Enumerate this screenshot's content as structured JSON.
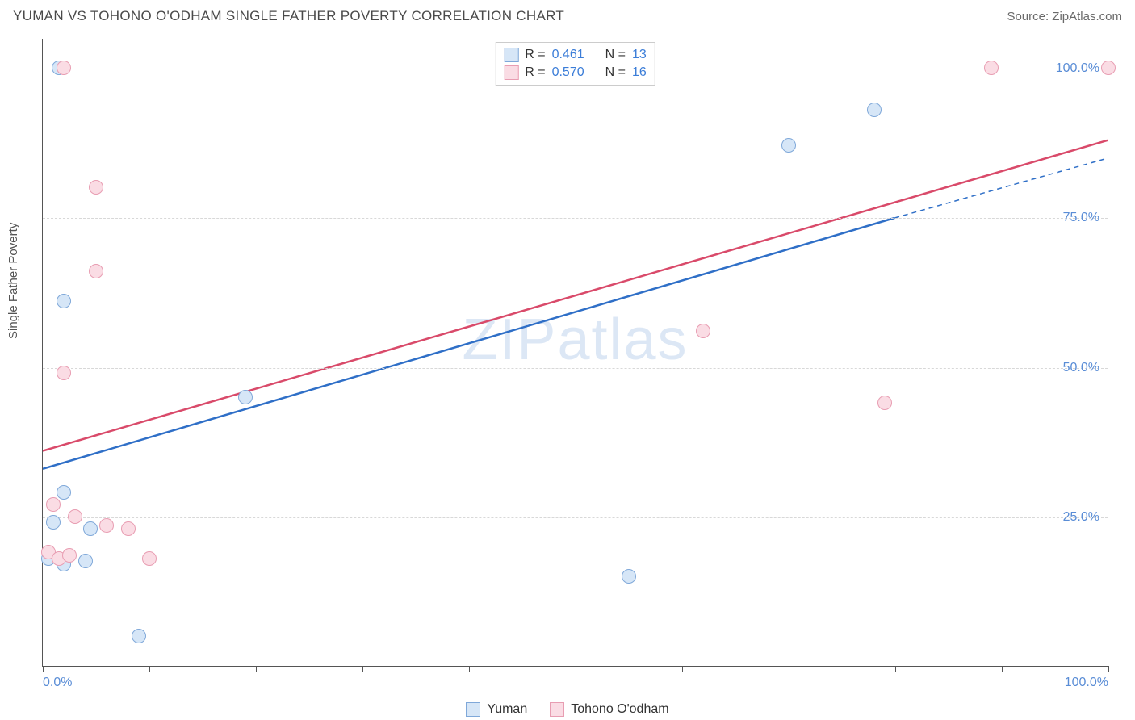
{
  "header": {
    "title": "YUMAN VS TOHONO O'ODHAM SINGLE FATHER POVERTY CORRELATION CHART",
    "source": "Source: ZipAtlas.com"
  },
  "watermark": {
    "part1": "ZIP",
    "part2": "atlas"
  },
  "chart": {
    "type": "scatter",
    "ylabel": "Single Father Poverty",
    "xlim": [
      0,
      100
    ],
    "ylim": [
      0,
      105
    ],
    "y_gridlines": [
      25,
      50,
      75,
      100
    ],
    "y_tick_labels": [
      "25.0%",
      "50.0%",
      "75.0%",
      "100.0%"
    ],
    "x_ticks": [
      0,
      10,
      20,
      30,
      40,
      50,
      60,
      70,
      80,
      90,
      100
    ],
    "x_tick_labels": {
      "0": "0.0%",
      "100": "100.0%"
    },
    "grid_color": "#d8d8d8",
    "axis_color": "#555555",
    "label_color": "#5a8dd6",
    "background_color": "#ffffff",
    "point_radius": 9,
    "series": [
      {
        "name": "Yuman",
        "fill": "#d6e6f7",
        "stroke": "#7fa8d9",
        "line_color": "#2f6fc7",
        "R": "0.461",
        "N": "13",
        "trend": {
          "x1": 0,
          "y1": 33,
          "x2": 80,
          "y2": 75,
          "dash_x1": 80,
          "dash_y1": 75,
          "dash_x2": 100,
          "dash_y2": 85
        },
        "points": [
          {
            "x": 1.5,
            "y": 100
          },
          {
            "x": 2,
            "y": 61
          },
          {
            "x": 19,
            "y": 45
          },
          {
            "x": 2,
            "y": 29
          },
          {
            "x": 1,
            "y": 24
          },
          {
            "x": 4.5,
            "y": 23
          },
          {
            "x": 0.5,
            "y": 18
          },
          {
            "x": 2,
            "y": 17
          },
          {
            "x": 4,
            "y": 17.5
          },
          {
            "x": 55,
            "y": 15
          },
          {
            "x": 9,
            "y": 5
          },
          {
            "x": 70,
            "y": 87
          },
          {
            "x": 78,
            "y": 93
          }
        ]
      },
      {
        "name": "Tohono O'odham",
        "fill": "#fadce4",
        "stroke": "#e89db2",
        "line_color": "#d94a6a",
        "R": "0.570",
        "N": "16",
        "trend": {
          "x1": 0,
          "y1": 36,
          "x2": 100,
          "y2": 88
        },
        "points": [
          {
            "x": 2,
            "y": 100
          },
          {
            "x": 5,
            "y": 80
          },
          {
            "x": 5,
            "y": 66
          },
          {
            "x": 2,
            "y": 49
          },
          {
            "x": 1,
            "y": 27
          },
          {
            "x": 3,
            "y": 25
          },
          {
            "x": 6,
            "y": 23.5
          },
          {
            "x": 8,
            "y": 23
          },
          {
            "x": 0.5,
            "y": 19
          },
          {
            "x": 1.5,
            "y": 18
          },
          {
            "x": 2.5,
            "y": 18.5
          },
          {
            "x": 10,
            "y": 18
          },
          {
            "x": 62,
            "y": 56
          },
          {
            "x": 79,
            "y": 44
          },
          {
            "x": 89,
            "y": 100
          },
          {
            "x": 100,
            "y": 100
          }
        ]
      }
    ]
  },
  "legend_top_prefix_R": "R =  ",
  "legend_top_prefix_N": "N = "
}
